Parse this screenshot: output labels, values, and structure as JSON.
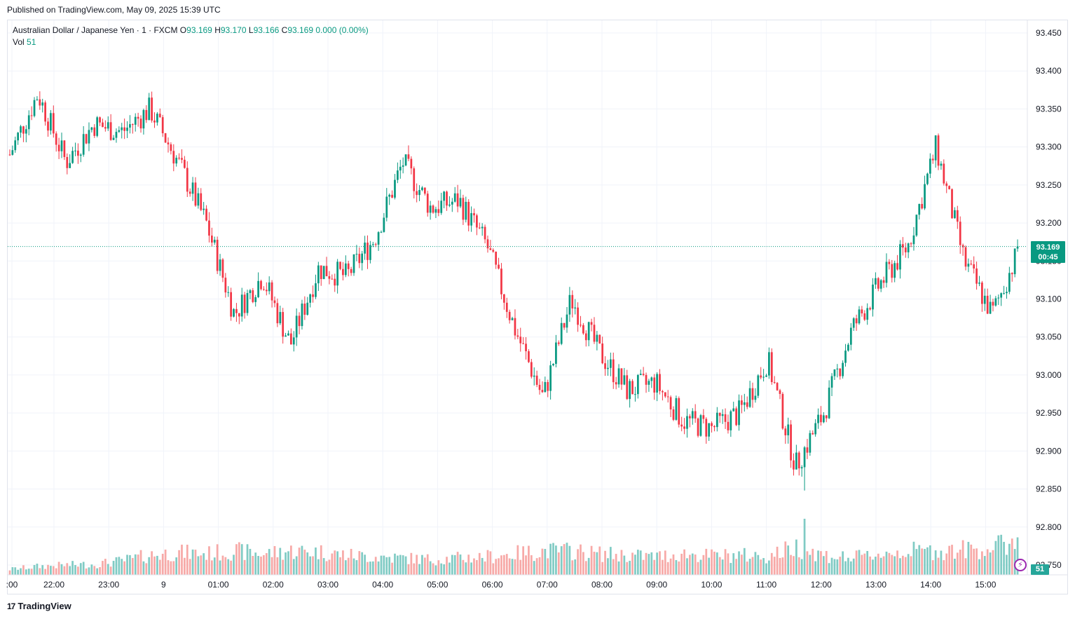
{
  "header": {
    "published": "Published on TradingView.com, May 09, 2025 15:39 UTC"
  },
  "legend": {
    "symbol": "Australian Dollar / Japanese Yen · 1 · FXCM",
    "o_label": "O",
    "o_value": "93.169",
    "h_label": "H",
    "h_value": "93.170",
    "l_label": "L",
    "l_value": "93.166",
    "c_label": "C",
    "c_value": "93.169",
    "change": "0.000 (0.00%)",
    "vol_label": "Vol",
    "vol_value": "51"
  },
  "price_tag": {
    "price": "93.169",
    "countdown": "00:45"
  },
  "vol_tag": "51",
  "brand": {
    "logo": "17",
    "name": "TradingView"
  },
  "colors": {
    "up": "#089981",
    "down": "#f23645",
    "vol_up": "#80cbc4",
    "vol_down": "#f7a9a7",
    "grid": "#f0f3fa",
    "axis_text": "#131722"
  },
  "chart_data": {
    "type": "candlestick",
    "title": "Australian Dollar / Japanese Yen · 1 · FXCM",
    "ylim": [
      92.75,
      93.45
    ],
    "y_ticks": [
      "93.450",
      "93.400",
      "93.350",
      "93.300",
      "93.250",
      "93.200",
      "93.150",
      "93.100",
      "93.050",
      "93.000",
      "92.950",
      "92.900",
      "92.850",
      "92.800",
      "92.750"
    ],
    "x_ticks": [
      ":00",
      "22:00",
      "23:00",
      "9",
      "01:00",
      "02:00",
      "03:00",
      "04:00",
      "05:00",
      "06:00",
      "07:00",
      "08:00",
      "09:00",
      "10:00",
      "11:00",
      "12:00",
      "13:00",
      "14:00",
      "15:00"
    ],
    "last_price": 93.169,
    "series": [
      {
        "name": "Close",
        "x": [
          "21:30",
          "22:00",
          "22:30",
          "23:00",
          "23:30",
          "00:00",
          "00:30",
          "01:00",
          "01:30",
          "02:00",
          "02:30",
          "03:00",
          "03:30",
          "04:00",
          "04:30",
          "05:00",
          "05:30",
          "06:00",
          "06:30",
          "07:00",
          "07:30",
          "08:00",
          "08:30",
          "09:00",
          "09:30",
          "10:00",
          "10:30",
          "11:00",
          "11:30",
          "12:00",
          "12:30",
          "13:00",
          "13:30",
          "14:00",
          "14:30",
          "15:00",
          "15:39"
        ],
        "values": [
          93.29,
          93.37,
          93.28,
          93.33,
          93.32,
          93.35,
          93.28,
          93.2,
          93.08,
          93.13,
          93.04,
          93.14,
          93.13,
          93.18,
          93.28,
          93.22,
          93.23,
          93.17,
          93.06,
          92.97,
          93.1,
          93.03,
          92.98,
          92.99,
          92.94,
          92.93,
          92.95,
          93.02,
          92.88,
          92.95,
          93.06,
          93.12,
          93.17,
          93.3,
          93.15,
          93.08,
          93.169
        ]
      },
      {
        "name": "Vol",
        "values": [
          8,
          12,
          14,
          15,
          20,
          28,
          32,
          30,
          34,
          30,
          34,
          33,
          28,
          26,
          24,
          22,
          24,
          26,
          30,
          34,
          34,
          30,
          28,
          26,
          30,
          27,
          28,
          26,
          40,
          28,
          24,
          30,
          34,
          34,
          36,
          38,
          51
        ]
      }
    ]
  }
}
